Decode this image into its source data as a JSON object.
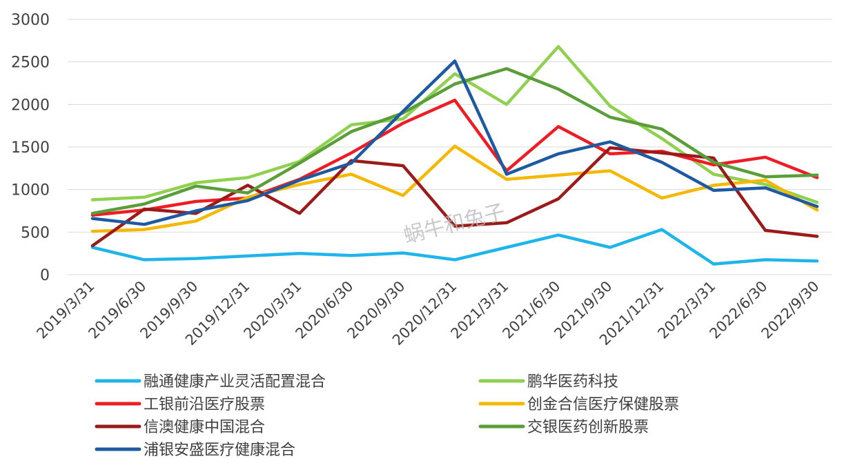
{
  "watermark": "蜗牛和兔子",
  "chart_data": {
    "type": "line",
    "title": "",
    "xlabel": "",
    "ylabel": "",
    "ylim": [
      0,
      3000
    ],
    "yticks": [
      0,
      500,
      1000,
      1500,
      2000,
      2500,
      3000
    ],
    "grid": "horizontal",
    "legend_position": "bottom",
    "categories": [
      "2019/3/31",
      "2019/6/30",
      "2019/9/30",
      "2019/12/31",
      "2020/3/31",
      "2020/6/30",
      "2020/9/30",
      "2020/12/31",
      "2021/3/31",
      "2021/6/30",
      "2021/9/30",
      "2021/12/31",
      "2022/3/31",
      "2022/6/30",
      "2022/9/30"
    ],
    "series": [
      {
        "name": "融通健康产业灵活配置混合",
        "color": "#1fb4ea",
        "values": [
          320,
          175,
          190,
          220,
          250,
          225,
          255,
          175,
          320,
          465,
          320,
          530,
          125,
          175,
          160
        ]
      },
      {
        "name": "鹏华医药科技",
        "color": "#8fd14f",
        "values": [
          880,
          910,
          1080,
          1140,
          1330,
          1760,
          1830,
          2360,
          2000,
          2680,
          1980,
          1600,
          1180,
          1060,
          850
        ]
      },
      {
        "name": "工银前沿医疗股票",
        "color": "#ee1c24",
        "values": [
          700,
          760,
          860,
          900,
          1120,
          1430,
          1780,
          2050,
          1220,
          1740,
          1420,
          1450,
          1290,
          1380,
          1140
        ]
      },
      {
        "name": "创金合信医疗保健股票",
        "color": "#f5b800",
        "values": [
          510,
          530,
          630,
          910,
          1060,
          1180,
          930,
          1510,
          1120,
          1170,
          1220,
          900,
          1050,
          1110,
          760
        ]
      },
      {
        "name": "信澳健康中国混合",
        "color": "#9b1b1b",
        "values": [
          340,
          770,
          720,
          1050,
          720,
          1340,
          1280,
          570,
          610,
          890,
          1490,
          1430,
          1370,
          520,
          450
        ]
      },
      {
        "name": "交银医药创新股票",
        "color": "#5a9e3a",
        "values": [
          720,
          830,
          1040,
          960,
          1310,
          1680,
          1900,
          2240,
          2420,
          2180,
          1850,
          1710,
          1320,
          1150,
          1170
        ]
      },
      {
        "name": "浦银安盛医疗健康混合",
        "color": "#1e5aa0",
        "values": [
          660,
          590,
          750,
          870,
          1110,
          1310,
          1920,
          2510,
          1180,
          1420,
          1560,
          1320,
          990,
          1020,
          800
        ]
      }
    ]
  }
}
